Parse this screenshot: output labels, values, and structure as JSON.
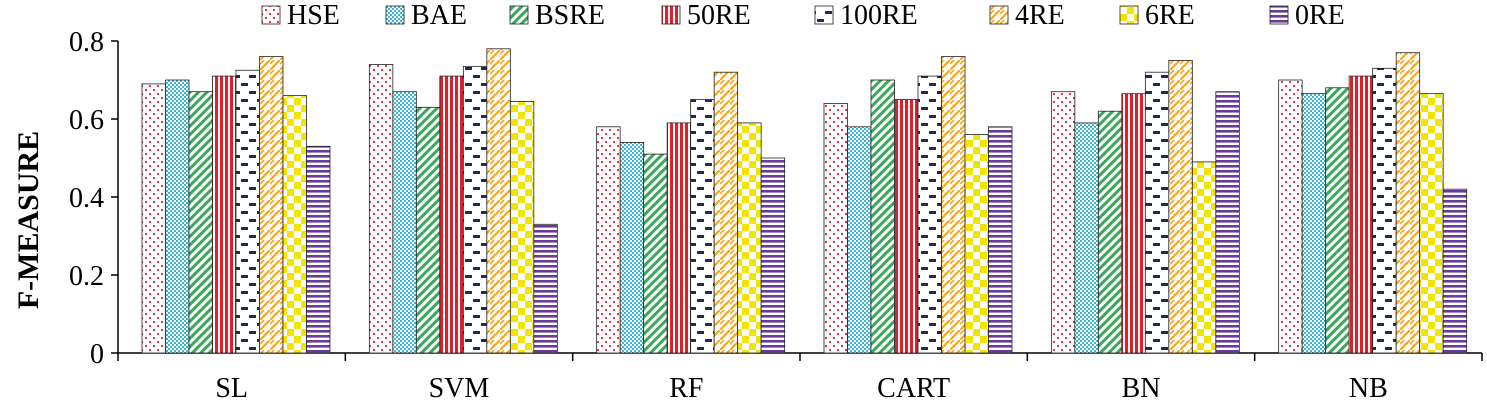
{
  "chart_data": {
    "type": "bar",
    "title": "",
    "xlabel": "",
    "ylabel": "F-MEASURE",
    "ylim": [
      0,
      0.8
    ],
    "yticks": [
      0,
      0.2,
      0.4,
      0.6,
      0.8
    ],
    "ytick_labels": [
      "0",
      "0.2",
      "0.4",
      "0.6",
      "0.8"
    ],
    "grid": false,
    "legend_position": "top",
    "categories": [
      "SL",
      "SVM",
      "RF",
      "CART",
      "BN",
      "NB"
    ],
    "series": [
      {
        "name": "HSE",
        "pattern": "dots-red",
        "color": "#e8343a",
        "values": [
          0.69,
          0.74,
          0.58,
          0.64,
          0.67,
          0.7
        ]
      },
      {
        "name": "BAE",
        "pattern": "checker-blue",
        "color": "#3cb4d8",
        "values": [
          0.7,
          0.67,
          0.54,
          0.58,
          0.59,
          0.665
        ]
      },
      {
        "name": "BSRE",
        "pattern": "diagonal-green",
        "color": "#3aa85a",
        "values": [
          0.67,
          0.63,
          0.51,
          0.7,
          0.62,
          0.68
        ]
      },
      {
        "name": "50RE",
        "pattern": "vertical-red",
        "color": "#e01f2a",
        "values": [
          0.71,
          0.71,
          0.59,
          0.65,
          0.665,
          0.71
        ]
      },
      {
        "name": "100RE",
        "pattern": "dashes-navy",
        "color": "#1e2a5a",
        "values": [
          0.725,
          0.735,
          0.65,
          0.71,
          0.72,
          0.73
        ]
      },
      {
        "name": "4RE",
        "pattern": "zigzag-orange",
        "color": "#f5a623",
        "values": [
          0.76,
          0.78,
          0.72,
          0.76,
          0.75,
          0.77
        ]
      },
      {
        "name": "6RE",
        "pattern": "checker-yellow",
        "color": "#f2e600",
        "values": [
          0.66,
          0.645,
          0.59,
          0.56,
          0.49,
          0.665
        ]
      },
      {
        "name": "0RE",
        "pattern": "horizontal-purple",
        "color": "#6a3a9a",
        "values": [
          0.53,
          0.33,
          0.5,
          0.58,
          0.67,
          0.42
        ]
      }
    ]
  }
}
